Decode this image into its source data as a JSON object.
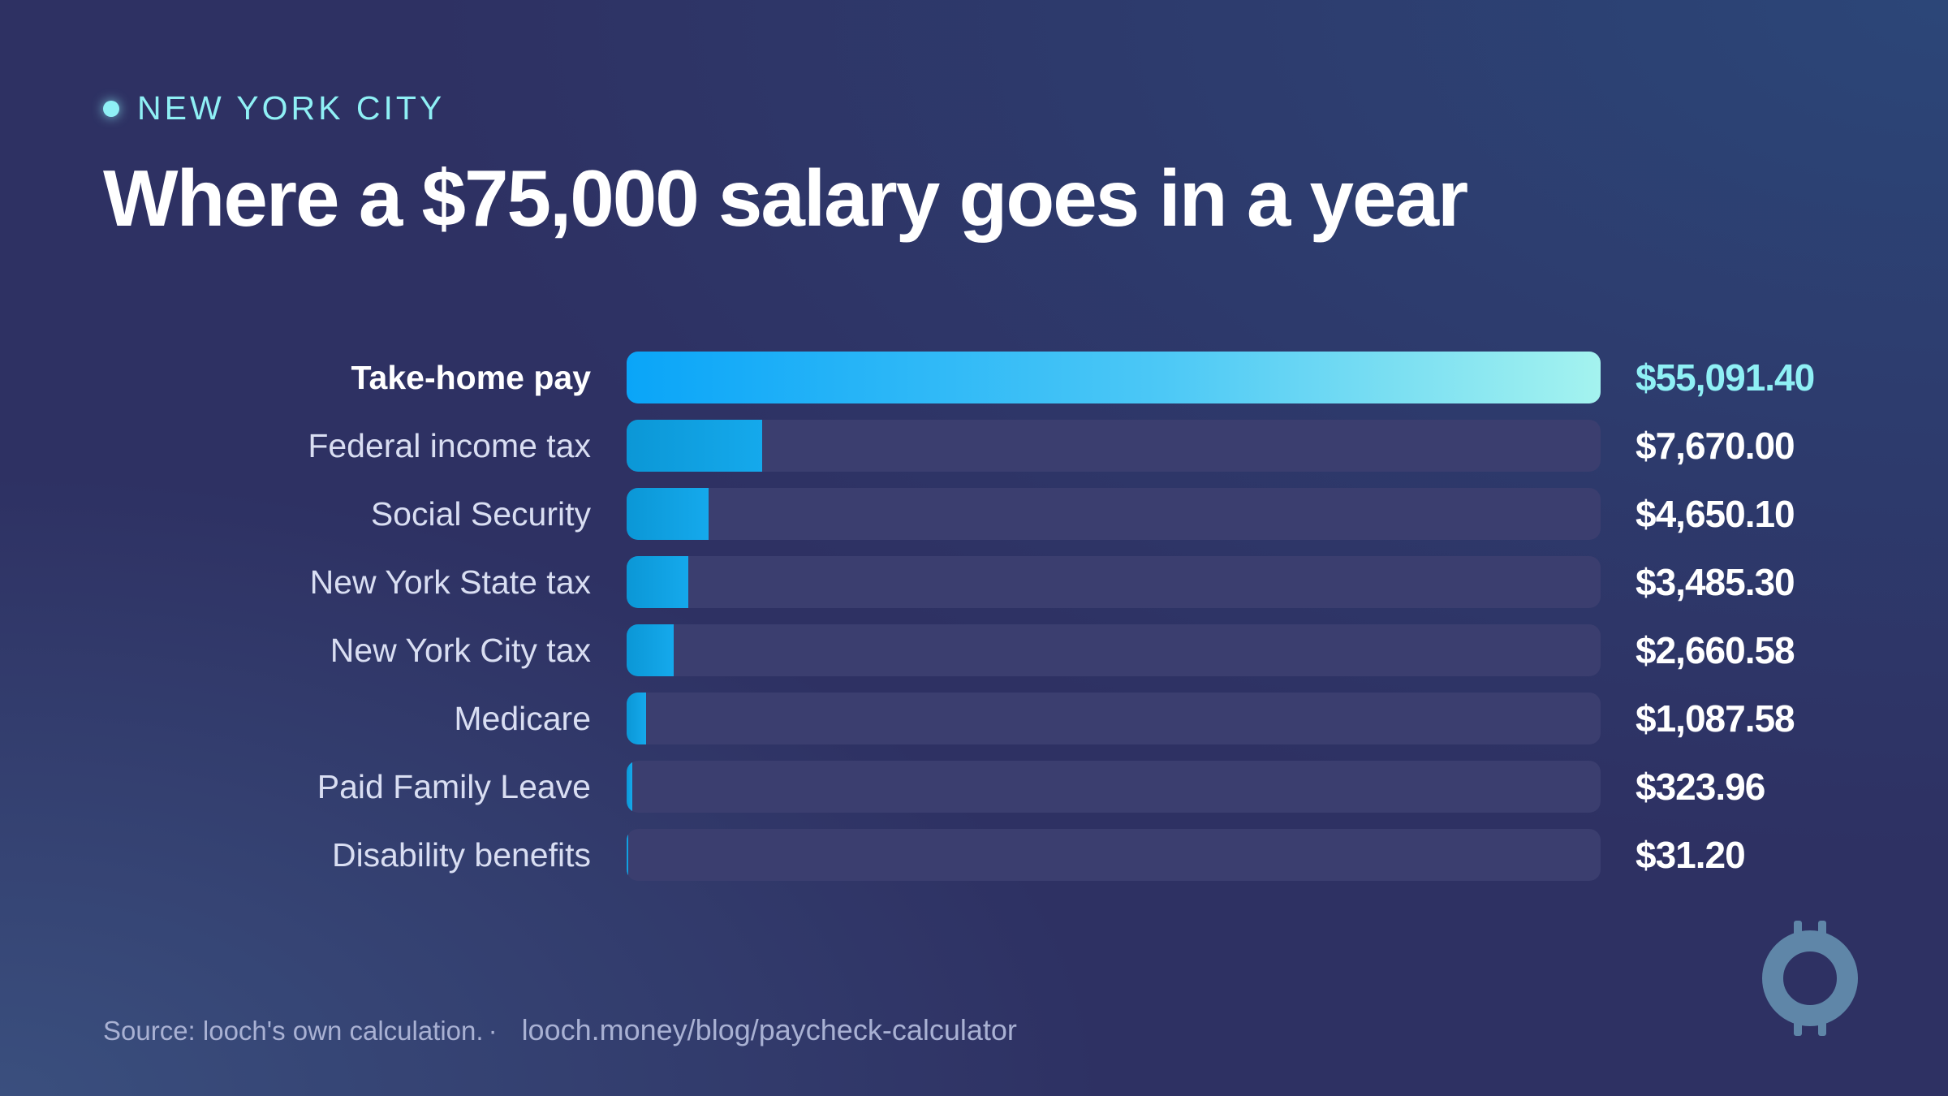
{
  "eyebrow": "NEW YORK CITY",
  "title": "Where a $75,000 salary goes in a year",
  "chart_data": {
    "type": "bar",
    "orientation": "horizontal",
    "title": "Where a $75,000 salary goes in a year",
    "categories": [
      "Take-home pay",
      "Federal income tax",
      "Social Security",
      "New York State tax",
      "New York City tax",
      "Medicare",
      "Paid Family Leave",
      "Disability benefits"
    ],
    "values": [
      55091.4,
      7670.0,
      4650.1,
      3485.3,
      2660.58,
      1087.58,
      323.96,
      31.2
    ],
    "value_labels": [
      "$55,091.40",
      "$7,670.00",
      "$4,650.10",
      "$3,485.30",
      "$2,660.58",
      "$1,087.58",
      "$323.96",
      "$31.20"
    ],
    "highlight_index": 0,
    "xlim": [
      0,
      55091.4
    ],
    "grid": false,
    "colors": {
      "highlight_start": "#0aa5f8",
      "highlight_end": "#a4f3ef",
      "bar": "#0b97d6",
      "track": "#3b3e6f",
      "highlight_value": "#8ff0f5"
    }
  },
  "footer": {
    "source": "Source: looch's own calculation.",
    "separator": "·",
    "link": "looch.money/blog/paycheck-calculator"
  },
  "logo": {
    "icon": "looch-logo-icon",
    "color": "#5f86a8"
  }
}
